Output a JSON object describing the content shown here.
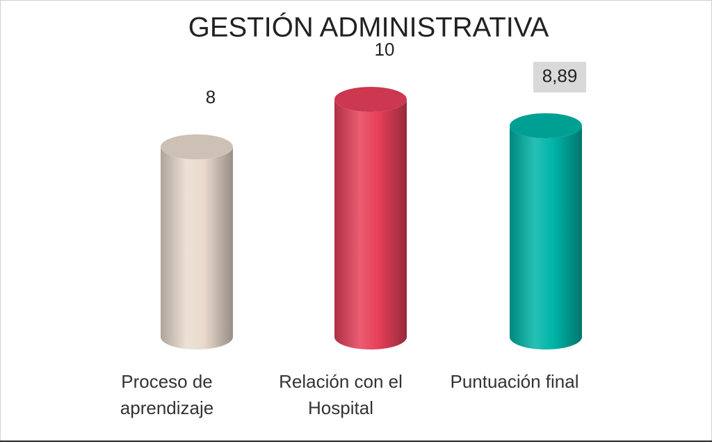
{
  "chart_data": {
    "type": "bar",
    "style": "cylinder",
    "title": "GESTIÓN ADMINISTRATIVA",
    "categories": [
      "Proceso de aprendizaje",
      "Relación con el Hospital",
      "Puntuación final"
    ],
    "values": [
      8,
      10,
      8.89
    ],
    "value_labels": [
      "8",
      "10",
      "8,89"
    ],
    "colors": [
      "#e9dacd",
      "#e8405a",
      "#00b5a8"
    ],
    "ylim": [
      0,
      10
    ]
  }
}
